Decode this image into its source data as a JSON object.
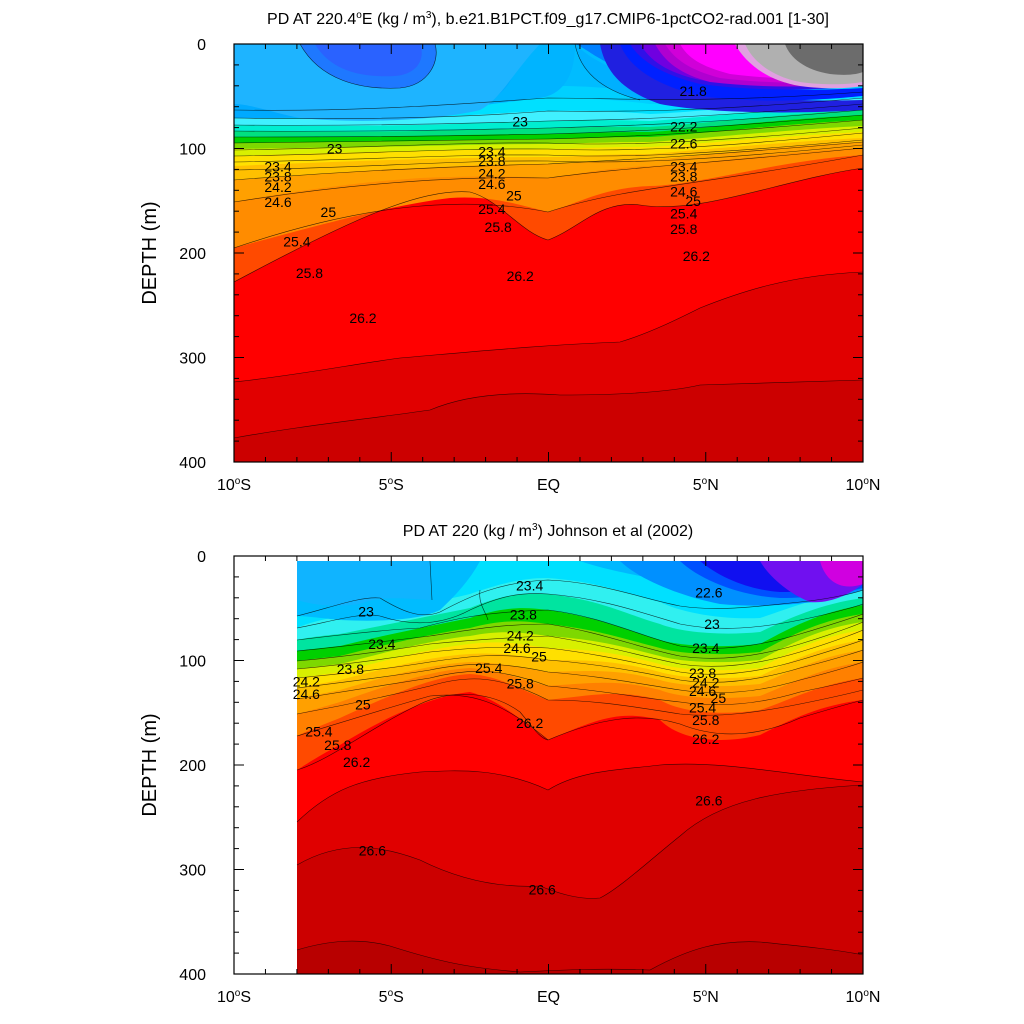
{
  "chart_data": [
    {
      "type": "contour",
      "title": {
        "pre": "PD AT 220.4",
        "deg": "o",
        "mid": "E (kg / m",
        "pow": "3",
        "post": "), b.e21.B1PCT.f09_g17.CMIP6-1pctCO2-rad.001 [1-30]"
      },
      "ylabel": "DEPTH (m)",
      "xlim": [
        -10,
        10
      ],
      "ylim": [
        0,
        400
      ],
      "y_reversed": true,
      "y_ticks": [
        "0",
        "100",
        "200",
        "300",
        "400"
      ],
      "x_ticks": [
        {
          "num": "10",
          "deg": "o",
          "hem": "S"
        },
        {
          "num": "5",
          "deg": "o",
          "hem": "S"
        },
        {
          "num": "EQ",
          "deg": "",
          "hem": ""
        },
        {
          "num": "5",
          "deg": "o",
          "hem": "N"
        },
        {
          "num": "10",
          "deg": "o",
          "hem": "N"
        }
      ],
      "data_x_range": [
        -10,
        10
      ],
      "contour_levels": [
        21.0,
        21.2,
        21.4,
        21.6,
        21.8,
        22.0,
        22.2,
        22.4,
        22.6,
        22.8,
        23.0,
        23.2,
        23.4,
        23.6,
        23.8,
        24.0,
        24.2,
        24.4,
        24.6,
        24.8,
        25.0,
        25.2,
        25.4,
        25.6,
        25.8,
        26.0,
        26.2,
        26.4,
        26.6,
        26.8
      ],
      "surface_field": [
        {
          "x": -10,
          "value": 22.9
        },
        {
          "x": -7.5,
          "value": 22.9
        },
        {
          "x": -5,
          "value": 22.9
        },
        {
          "x": -1,
          "value": 23.0
        },
        {
          "x": 1.5,
          "value": 22.9
        },
        {
          "x": 3,
          "value": 22.4
        },
        {
          "x": 5,
          "value": 21.6
        },
        {
          "x": 7,
          "value": 21.2
        },
        {
          "x": 10,
          "value": 21.0
        }
      ],
      "isopycnal_depths": [
        {
          "level": "23",
          "depth": [
            [
              -10,
              95
            ],
            [
              -1,
              75
            ],
            [
              1,
              90
            ],
            [
              5,
              88
            ],
            [
              10,
              85
            ]
          ]
        },
        {
          "level": "23.4",
          "depth": [
            [
              -10,
              112
            ],
            [
              -6,
              116
            ],
            [
              0,
              118
            ],
            [
              5,
              113
            ],
            [
              10,
              100
            ]
          ]
        },
        {
          "level": "24.2",
          "depth": [
            [
              -10,
              130
            ],
            [
              -5,
              133
            ],
            [
              0,
              135
            ],
            [
              5,
              130
            ],
            [
              10,
              117
            ]
          ]
        },
        {
          "level": "25",
          "depth": [
            [
              -10,
              158
            ],
            [
              -5,
              165
            ],
            [
              0,
              160
            ],
            [
              5,
              152
            ],
            [
              10,
              140
            ]
          ]
        },
        {
          "level": "25.8",
          "depth": [
            [
              -10,
              218
            ],
            [
              -5,
              196
            ],
            [
              0,
              180
            ],
            [
              5,
              175
            ],
            [
              10,
              160
            ]
          ]
        },
        {
          "level": "26.2",
          "depth": [
            [
              -10,
              286
            ],
            [
              -5,
              205
            ],
            [
              -1,
              220
            ],
            [
              0,
              238
            ],
            [
              3,
              190
            ],
            [
              7,
              175
            ],
            [
              10,
              168
            ]
          ]
        }
      ],
      "contour_labels": [
        {
          "text": "23",
          "x": -6.8,
          "y": 100
        },
        {
          "text": "23.4",
          "x": -8.6,
          "y": 117
        },
        {
          "text": "23.8",
          "x": -8.6,
          "y": 127
        },
        {
          "text": "24.2",
          "x": -8.6,
          "y": 137
        },
        {
          "text": "24.6",
          "x": -8.6,
          "y": 151
        },
        {
          "text": "25",
          "x": -7.0,
          "y": 161
        },
        {
          "text": "25.4",
          "x": -8.0,
          "y": 189
        },
        {
          "text": "25.8",
          "x": -7.6,
          "y": 219
        },
        {
          "text": "26.2",
          "x": -5.9,
          "y": 262
        },
        {
          "text": "23",
          "x": -0.9,
          "y": 74
        },
        {
          "text": "23.4",
          "x": -1.8,
          "y": 103
        },
        {
          "text": "23.8",
          "x": -1.8,
          "y": 112
        },
        {
          "text": "24.2",
          "x": -1.8,
          "y": 124
        },
        {
          "text": "24.6",
          "x": -1.8,
          "y": 134
        },
        {
          "text": "25",
          "x": -1.1,
          "y": 145
        },
        {
          "text": "25.4",
          "x": -1.8,
          "y": 158
        },
        {
          "text": "25.8",
          "x": -1.6,
          "y": 175
        },
        {
          "text": "26.2",
          "x": -0.9,
          "y": 222
        },
        {
          "text": "21.8",
          "x": 4.6,
          "y": 45
        },
        {
          "text": "22.2",
          "x": 4.3,
          "y": 79
        },
        {
          "text": "22.6",
          "x": 4.3,
          "y": 95
        },
        {
          "text": "23.4",
          "x": 4.3,
          "y": 117
        },
        {
          "text": "23.8",
          "x": 4.3,
          "y": 127
        },
        {
          "text": "24.6",
          "x": 4.3,
          "y": 141
        },
        {
          "text": "25",
          "x": 4.6,
          "y": 150
        },
        {
          "text": "25.4",
          "x": 4.3,
          "y": 162
        },
        {
          "text": "25.8",
          "x": 4.3,
          "y": 177
        },
        {
          "text": "26.2",
          "x": 4.7,
          "y": 203
        }
      ]
    },
    {
      "type": "contour",
      "title": {
        "pre": "PD AT 220 (kg / m",
        "deg": "",
        "mid": "",
        "pow": "3",
        "post": ") Johnson et al (2002)"
      },
      "ylabel": "DEPTH (m)",
      "xlim": [
        -10,
        10
      ],
      "ylim": [
        0,
        400
      ],
      "y_reversed": true,
      "y_ticks": [
        "0",
        "100",
        "200",
        "300",
        "400"
      ],
      "x_ticks": [
        {
          "num": "10",
          "deg": "o",
          "hem": "S"
        },
        {
          "num": "5",
          "deg": "o",
          "hem": "S"
        },
        {
          "num": "EQ",
          "deg": "",
          "hem": ""
        },
        {
          "num": "5",
          "deg": "o",
          "hem": "N"
        },
        {
          "num": "10",
          "deg": "o",
          "hem": "N"
        }
      ],
      "data_x_range": [
        -8,
        10
      ],
      "contour_levels": [
        21.0,
        21.2,
        21.4,
        21.6,
        21.8,
        22.0,
        22.2,
        22.4,
        22.6,
        22.8,
        23.0,
        23.2,
        23.4,
        23.6,
        23.8,
        24.0,
        24.2,
        24.4,
        24.6,
        24.8,
        25.0,
        25.2,
        25.4,
        25.6,
        25.8,
        26.0,
        26.2,
        26.4,
        26.6,
        26.8
      ],
      "surface_field": [
        {
          "x": -8,
          "value": 23.0
        },
        {
          "x": -4.5,
          "value": 23.1
        },
        {
          "x": -1,
          "value": 23.4
        },
        {
          "x": 2,
          "value": 23.0
        },
        {
          "x": 4,
          "value": 22.6
        },
        {
          "x": 7,
          "value": 21.8
        },
        {
          "x": 10,
          "value": 21.4
        }
      ],
      "isopycnal_depths": [
        {
          "level": "23.4",
          "depth": [
            [
              -8,
              70
            ],
            [
              -5,
              72
            ],
            [
              -1,
              30
            ],
            [
              2,
              55
            ],
            [
              5,
              85
            ],
            [
              8,
              80
            ],
            [
              10,
              60
            ]
          ]
        },
        {
          "level": "24.2",
          "depth": [
            [
              -8,
              110
            ],
            [
              -5,
              105
            ],
            [
              -1,
              75
            ],
            [
              2,
              95
            ],
            [
              5,
              125
            ],
            [
              8,
              95
            ],
            [
              10,
              75
            ]
          ]
        },
        {
          "level": "25",
          "depth": [
            [
              -8,
              135
            ],
            [
              -5,
              130
            ],
            [
              0,
              90
            ],
            [
              2,
              110
            ],
            [
              5,
              145
            ],
            [
              8,
              110
            ],
            [
              10,
              90
            ]
          ]
        },
        {
          "level": "25.8",
          "depth": [
            [
              -8,
              175
            ],
            [
              -5,
              158
            ],
            [
              -1,
              125
            ],
            [
              2,
              135
            ],
            [
              5,
              170
            ],
            [
              8,
              140
            ],
            [
              10,
              115
            ]
          ]
        },
        {
          "level": "26.2",
          "depth": [
            [
              -8,
              220
            ],
            [
              -5,
              175
            ],
            [
              -2,
              137
            ],
            [
              0,
              178
            ],
            [
              3,
              145
            ],
            [
              5,
              175
            ],
            [
              8,
              145
            ],
            [
              10,
              130
            ]
          ]
        },
        {
          "level": "26.6",
          "depth": [
            [
              -8,
              360
            ],
            [
              -5,
              340
            ],
            [
              -1,
              322
            ],
            [
              2,
              333
            ],
            [
              5,
              250
            ],
            [
              8,
              230
            ],
            [
              10,
              225
            ]
          ]
        }
      ],
      "contour_labels": [
        {
          "text": "23",
          "x": -5.8,
          "y": 53
        },
        {
          "text": "23.4",
          "x": -5.3,
          "y": 84
        },
        {
          "text": "23.8",
          "x": -6.3,
          "y": 108
        },
        {
          "text": "24.2",
          "x": -7.7,
          "y": 120
        },
        {
          "text": "24.6",
          "x": -7.7,
          "y": 132
        },
        {
          "text": "25",
          "x": -5.9,
          "y": 142
        },
        {
          "text": "25.4",
          "x": -7.3,
          "y": 168
        },
        {
          "text": "25.8",
          "x": -6.7,
          "y": 181
        },
        {
          "text": "26.2",
          "x": -6.1,
          "y": 197
        },
        {
          "text": "26.6",
          "x": -5.6,
          "y": 282
        },
        {
          "text": "23.4",
          "x": -0.6,
          "y": 28
        },
        {
          "text": "23.8",
          "x": -0.8,
          "y": 56
        },
        {
          "text": "24.2",
          "x": -0.9,
          "y": 76
        },
        {
          "text": "24.6",
          "x": -1.0,
          "y": 88
        },
        {
          "text": "25",
          "x": -0.3,
          "y": 96
        },
        {
          "text": "25.4",
          "x": -1.9,
          "y": 107
        },
        {
          "text": "25.8",
          "x": -0.9,
          "y": 122
        },
        {
          "text": "26.2",
          "x": -0.6,
          "y": 160
        },
        {
          "text": "26.6",
          "x": -0.2,
          "y": 319
        },
        {
          "text": "22.6",
          "x": 5.1,
          "y": 35
        },
        {
          "text": "23",
          "x": 5.2,
          "y": 65
        },
        {
          "text": "23.4",
          "x": 5.0,
          "y": 88
        },
        {
          "text": "23.8",
          "x": 4.9,
          "y": 112
        },
        {
          "text": "24.2",
          "x": 5.0,
          "y": 121
        },
        {
          "text": "24.6",
          "x": 4.9,
          "y": 129
        },
        {
          "text": "25",
          "x": 5.4,
          "y": 136
        },
        {
          "text": "25.4",
          "x": 4.9,
          "y": 145
        },
        {
          "text": "25.8",
          "x": 5.0,
          "y": 157
        },
        {
          "text": "26.2",
          "x": 5.0,
          "y": 175
        },
        {
          "text": "26.6",
          "x": 5.1,
          "y": 234
        }
      ]
    }
  ]
}
